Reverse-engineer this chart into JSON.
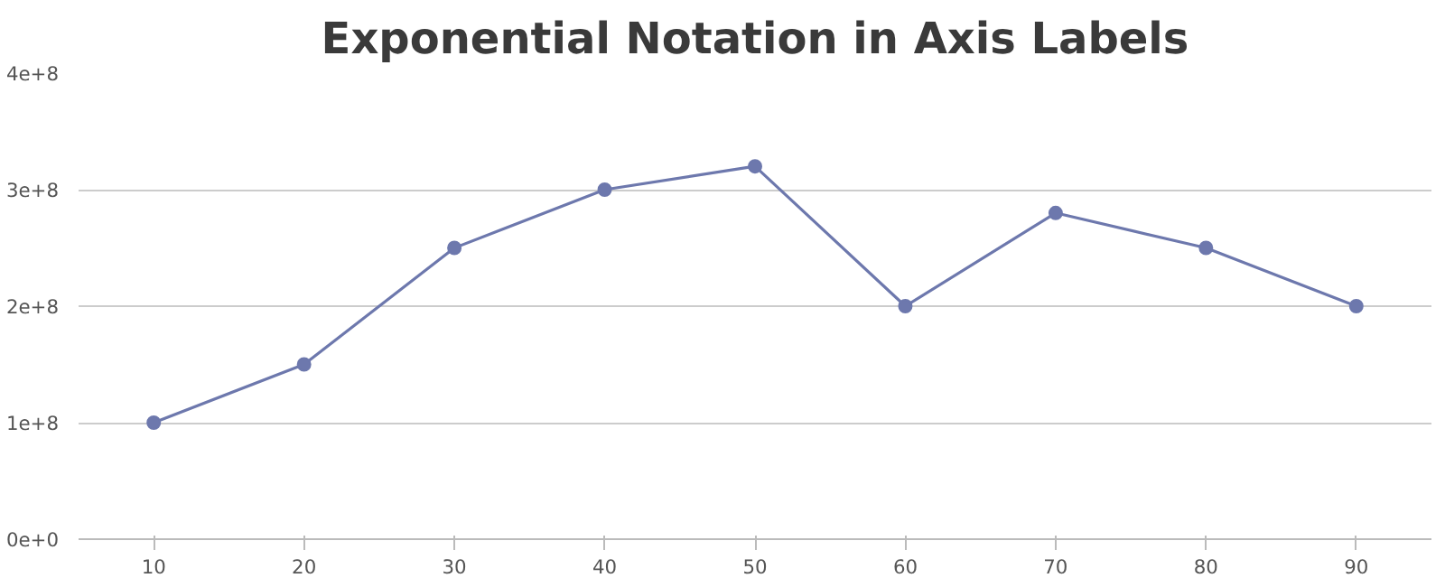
{
  "chart_data": {
    "type": "line",
    "title": "Exponential Notation in Axis Labels",
    "x": [
      10,
      20,
      30,
      40,
      50,
      60,
      70,
      80,
      90
    ],
    "series": [
      {
        "color": "#6d78ad",
        "values": [
          100000000,
          150000000,
          250000000,
          300000000,
          320000000,
          200000000,
          280000000,
          250000000,
          200000000
        ]
      }
    ],
    "xlim": [
      5,
      95
    ],
    "xticks": [
      10,
      20,
      30,
      40,
      50,
      60,
      70,
      80,
      90
    ],
    "ylim": [
      0,
      400000000
    ],
    "yticks": [
      {
        "value": 0,
        "label": "0e+0"
      },
      {
        "value": 100000000,
        "label": "1e+8"
      },
      {
        "value": 200000000,
        "label": "2e+8"
      },
      {
        "value": 300000000,
        "label": "3e+8"
      },
      {
        "value": 400000000,
        "label": "4e+8"
      }
    ],
    "grid": "y",
    "marker": "circle",
    "line_style": "solid"
  }
}
